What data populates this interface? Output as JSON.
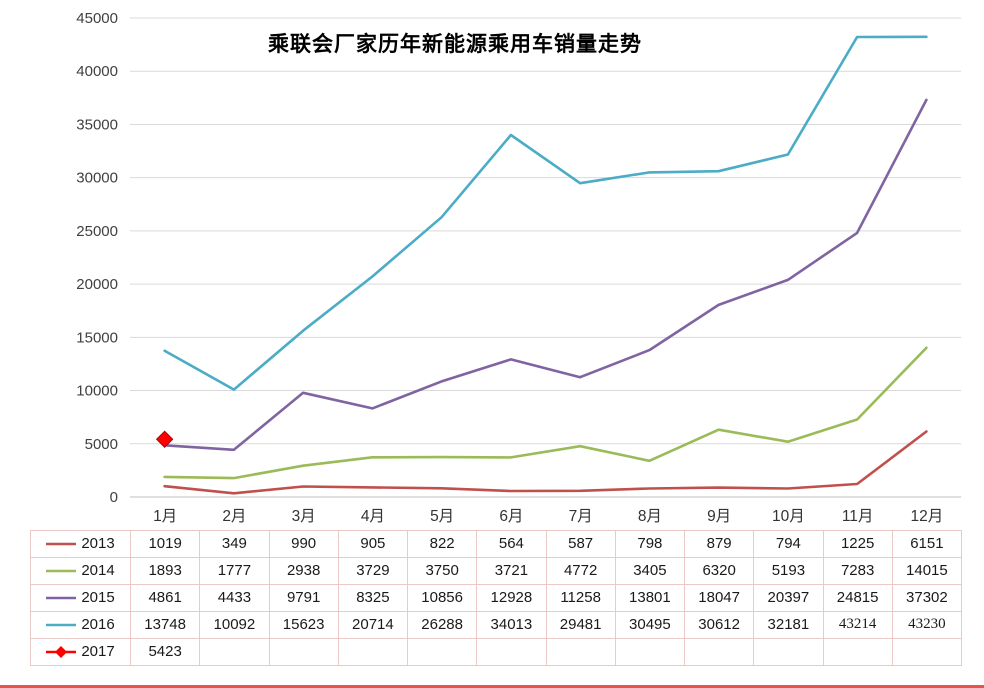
{
  "title": "乘联会厂家历年新能源乘用车销量走势",
  "chart_data": {
    "type": "line",
    "title": "乘联会厂家历年新能源乘用车销量走势",
    "categories": [
      "1月",
      "2月",
      "3月",
      "4月",
      "5月",
      "6月",
      "7月",
      "8月",
      "9月",
      "10月",
      "11月",
      "12月"
    ],
    "yticks": [
      "0",
      "5000",
      "10000",
      "15000",
      "20000",
      "25000",
      "30000",
      "35000",
      "40000",
      "45000"
    ],
    "ylim": [
      0,
      45000
    ],
    "grid": true,
    "legend_position": "table-left",
    "series": [
      {
        "name": "2013",
        "color": "#C0504D",
        "marker": "none",
        "values": [
          1019,
          349,
          990,
          905,
          822,
          564,
          587,
          798,
          879,
          794,
          1225,
          6151
        ]
      },
      {
        "name": "2014",
        "color": "#9BBB59",
        "marker": "none",
        "values": [
          1893,
          1777,
          2938,
          3729,
          3750,
          3721,
          4772,
          3405,
          6320,
          5193,
          7283,
          14015
        ]
      },
      {
        "name": "2015",
        "color": "#8064A2",
        "marker": "none",
        "values": [
          4861,
          4433,
          9791,
          8325,
          10856,
          12928,
          11258,
          13801,
          18047,
          20397,
          24815,
          37302
        ]
      },
      {
        "name": "2016",
        "color": "#4BACC6",
        "marker": "none",
        "values": [
          13748,
          10092,
          15623,
          20714,
          26288,
          34013,
          29481,
          30495,
          30612,
          32181,
          43214,
          43230
        ]
      },
      {
        "name": "2017",
        "color": "#FE0000",
        "marker": "diamond",
        "values": [
          5423,
          null,
          null,
          null,
          null,
          null,
          null,
          null,
          null,
          null,
          null,
          null
        ]
      }
    ]
  }
}
